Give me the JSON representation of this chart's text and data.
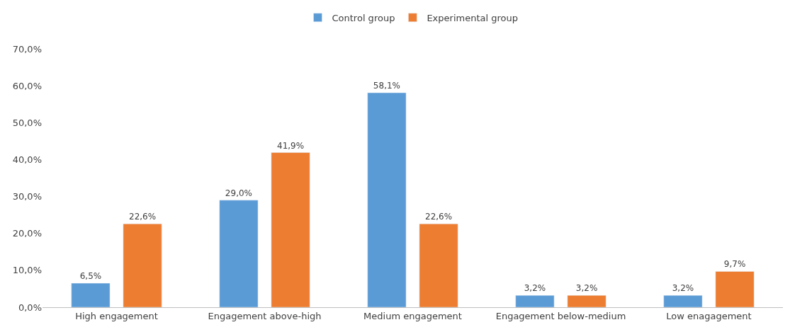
{
  "chart_data": {
    "type": "bar",
    "categories": [
      "High engagement",
      "Engagement above-high",
      "Medium engagement",
      "Engagement below-medium",
      "Low enagagement"
    ],
    "series": [
      {
        "name": "Control group",
        "color": "#5b9bd5",
        "values": [
          6.5,
          29.0,
          58.1,
          3.2,
          3.2
        ],
        "value_labels": [
          "6,5%",
          "29,0%",
          "58,1%",
          "3,2%",
          "3,2%"
        ]
      },
      {
        "name": "Experimental group",
        "color": "#ed7d31",
        "values": [
          22.6,
          41.9,
          22.6,
          3.2,
          9.7
        ],
        "value_labels": [
          "22,6%",
          "41,9%",
          "22,6%",
          "3,2%",
          "9,7%"
        ]
      }
    ],
    "ylim": [
      0,
      70
    ],
    "yticks": [
      {
        "value": 0,
        "label": "0,0%"
      },
      {
        "value": 10,
        "label": "10,0%"
      },
      {
        "value": 20,
        "label": "20,0%"
      },
      {
        "value": 30,
        "label": "30,0%"
      },
      {
        "value": 40,
        "label": "40,0%"
      },
      {
        "value": 50,
        "label": "50,0%"
      },
      {
        "value": 60,
        "label": "60,0%"
      },
      {
        "value": 70,
        "label": "70,0%"
      }
    ],
    "grid": false,
    "legend": "top"
  }
}
